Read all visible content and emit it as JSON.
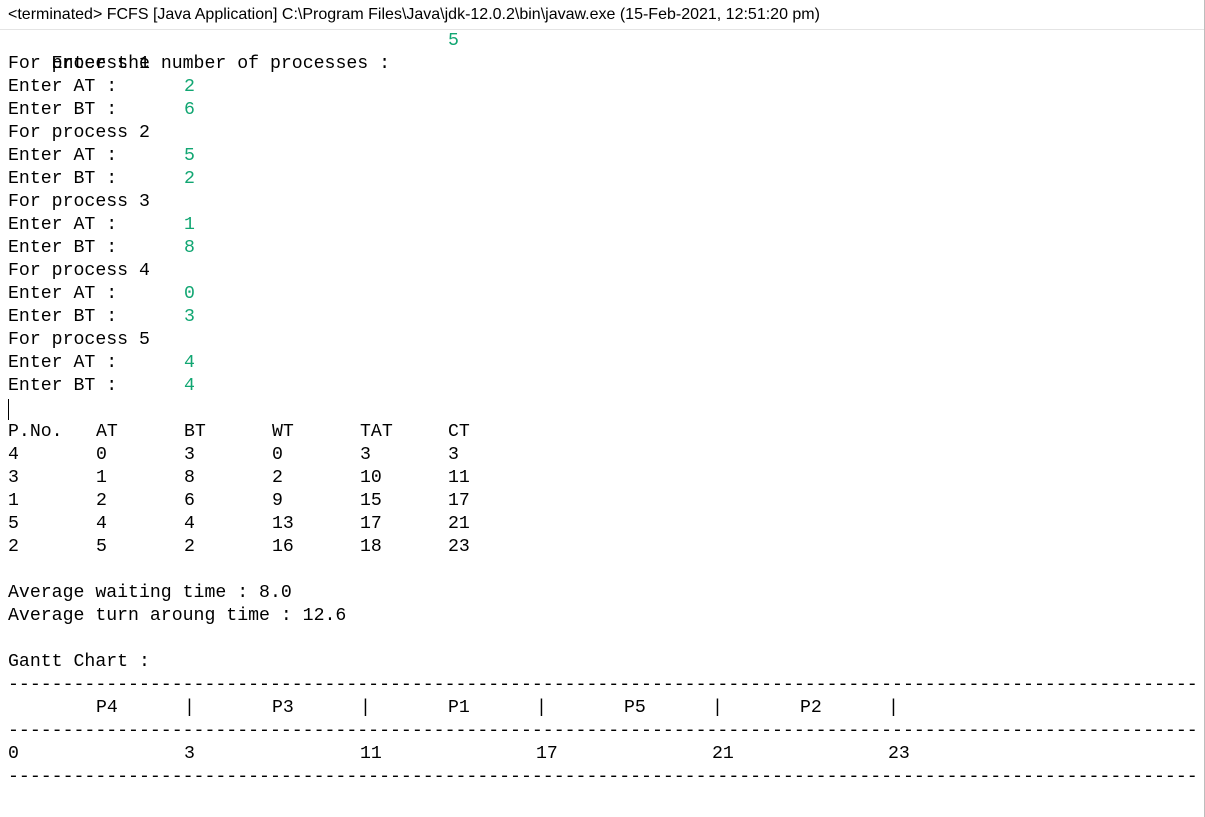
{
  "title_bar": {
    "text": "<terminated> FCFS [Java Application] C:\\Program Files\\Java\\jdk-12.0.2\\bin\\javaw.exe (15-Feb-2021, 12:51:20 pm)"
  },
  "num_processes": {
    "prompt": "Enter the number of processes :",
    "value": "5"
  },
  "processes": [
    {
      "header": "For process 1",
      "at_prompt": "Enter AT :",
      "at": "2",
      "bt_prompt": "Enter BT :",
      "bt": "6"
    },
    {
      "header": "For process 2",
      "at_prompt": "Enter AT :",
      "at": "5",
      "bt_prompt": "Enter BT :",
      "bt": "2"
    },
    {
      "header": "For process 3",
      "at_prompt": "Enter AT :",
      "at": "1",
      "bt_prompt": "Enter BT :",
      "bt": "8"
    },
    {
      "header": "For process 4",
      "at_prompt": "Enter AT :",
      "at": "0",
      "bt_prompt": "Enter BT :",
      "bt": "3"
    },
    {
      "header": "For process 5",
      "at_prompt": "Enter AT :",
      "at": "4",
      "bt_prompt": "Enter BT :",
      "bt": "4"
    }
  ],
  "table": {
    "headers": [
      "P.No.",
      "AT",
      "BT",
      "WT",
      "TAT",
      "CT"
    ],
    "rows": [
      [
        "4",
        "0",
        "3",
        "0",
        "3",
        "3"
      ],
      [
        "3",
        "1",
        "8",
        "2",
        "10",
        "11"
      ],
      [
        "1",
        "2",
        "6",
        "9",
        "15",
        "17"
      ],
      [
        "5",
        "4",
        "4",
        "13",
        "17",
        "21"
      ],
      [
        "2",
        "5",
        "2",
        "16",
        "18",
        "23"
      ]
    ]
  },
  "averages": {
    "waiting": "Average waiting time : 8.0",
    "turnaround": "Average turn aroung time : 12.6"
  },
  "gantt": {
    "title": "Gantt Chart :",
    "separator": "--------------------------------------------------------------------------------------------------------------------------------",
    "blocks": [
      "P4",
      "P3",
      "P1",
      "P5",
      "P2"
    ],
    "divider": "|",
    "times": [
      "0",
      "3",
      "11",
      "17",
      "21",
      "23"
    ]
  }
}
